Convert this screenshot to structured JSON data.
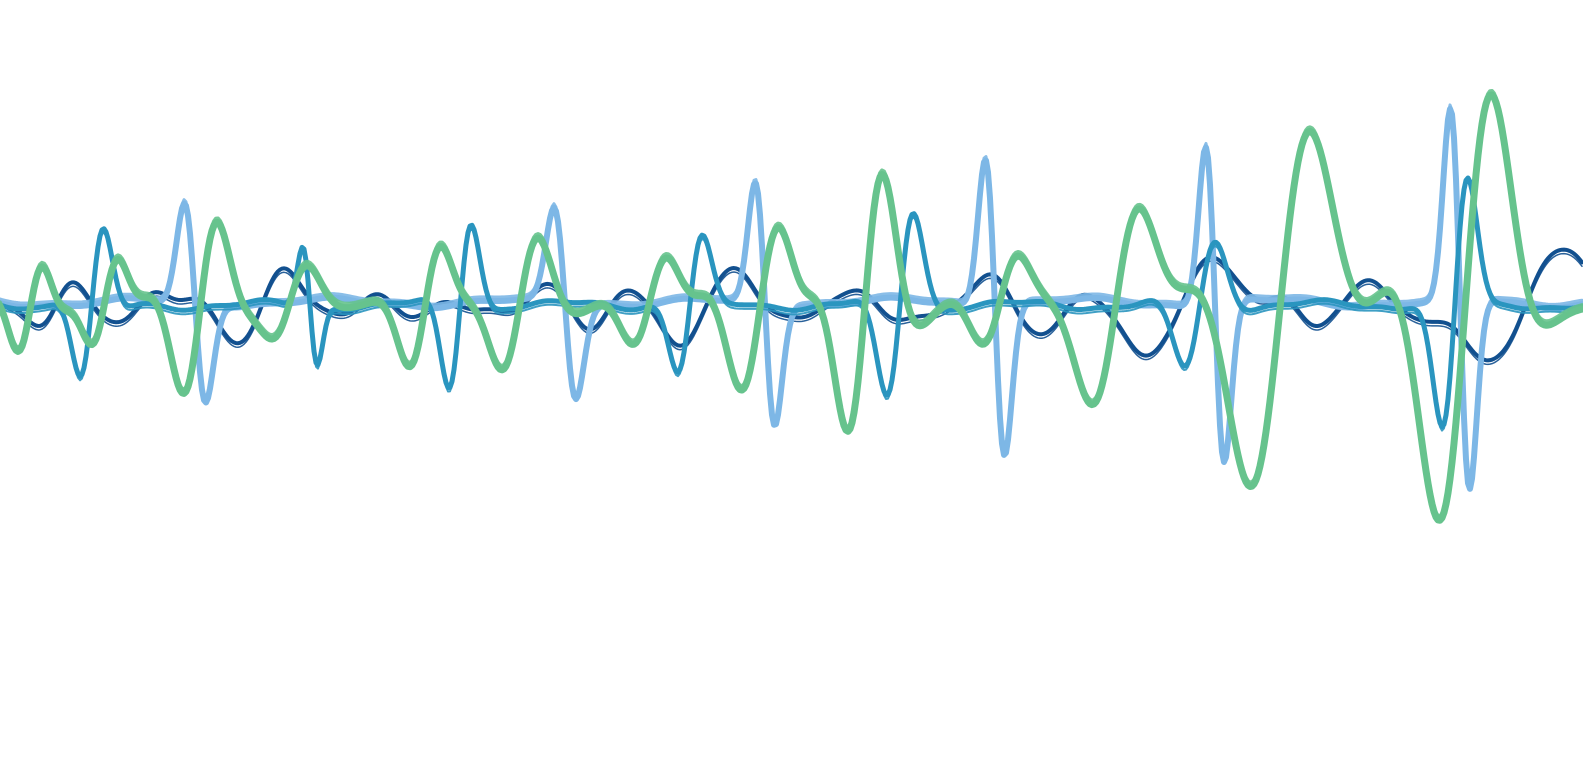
{
  "artwork": {
    "background": "#ffffff",
    "colors": {
      "dark_blue": "#12508f",
      "teal": "#2a95bf",
      "green": "#66c38d",
      "light_blue": "#7db7e6"
    },
    "wave_names": [
      "dark-blue-wave",
      "light-blue-wave",
      "teal-wave",
      "green-wave"
    ]
  }
}
